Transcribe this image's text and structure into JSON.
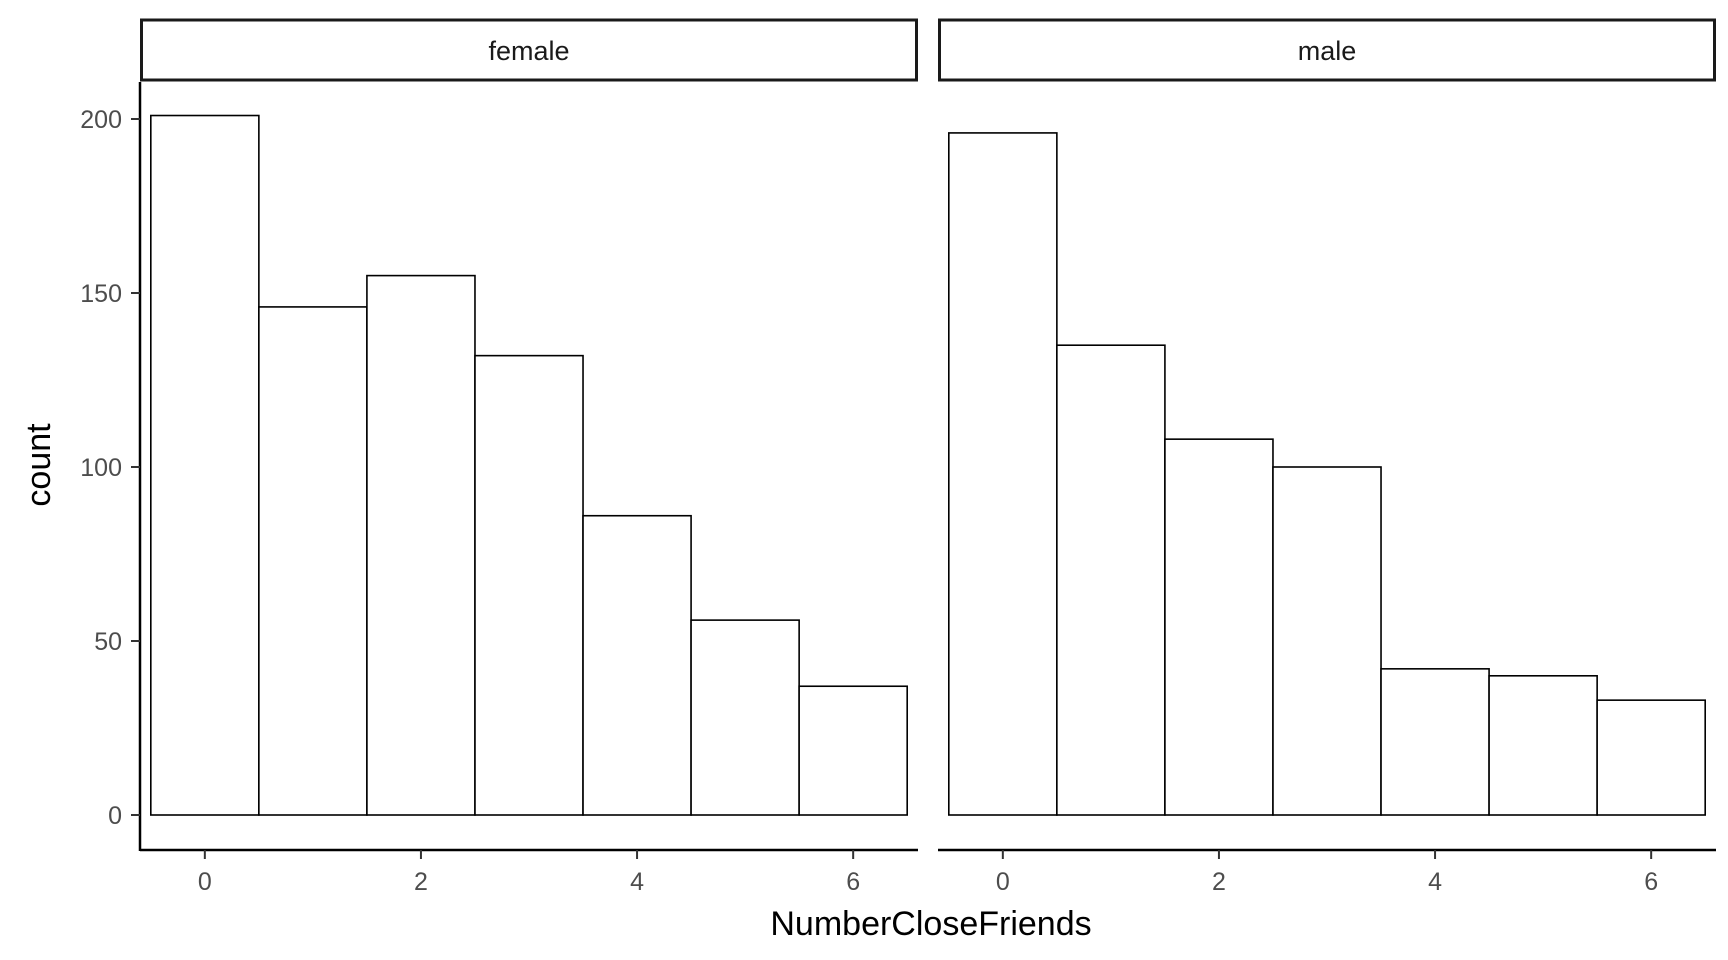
{
  "chart_data": {
    "type": "bar",
    "title": "",
    "xlabel": "NumberCloseFriends",
    "ylabel": "count",
    "ylim": [
      0,
      210
    ],
    "xlim": [
      -0.6,
      6.6
    ],
    "x_ticks": [
      0,
      2,
      4,
      6
    ],
    "y_ticks": [
      0,
      50,
      100,
      150,
      200
    ],
    "bin_width": 1,
    "categories": [
      0,
      1,
      2,
      3,
      4,
      5,
      6
    ],
    "grid": false,
    "legend": "none",
    "bar_fill": "#ffffff",
    "bar_stroke": "#000000",
    "facets": [
      {
        "strip": "female",
        "values": [
          201,
          146,
          155,
          132,
          86,
          56,
          37
        ]
      },
      {
        "strip": "male",
        "values": [
          196,
          135,
          108,
          100,
          42,
          40,
          33
        ]
      }
    ]
  }
}
